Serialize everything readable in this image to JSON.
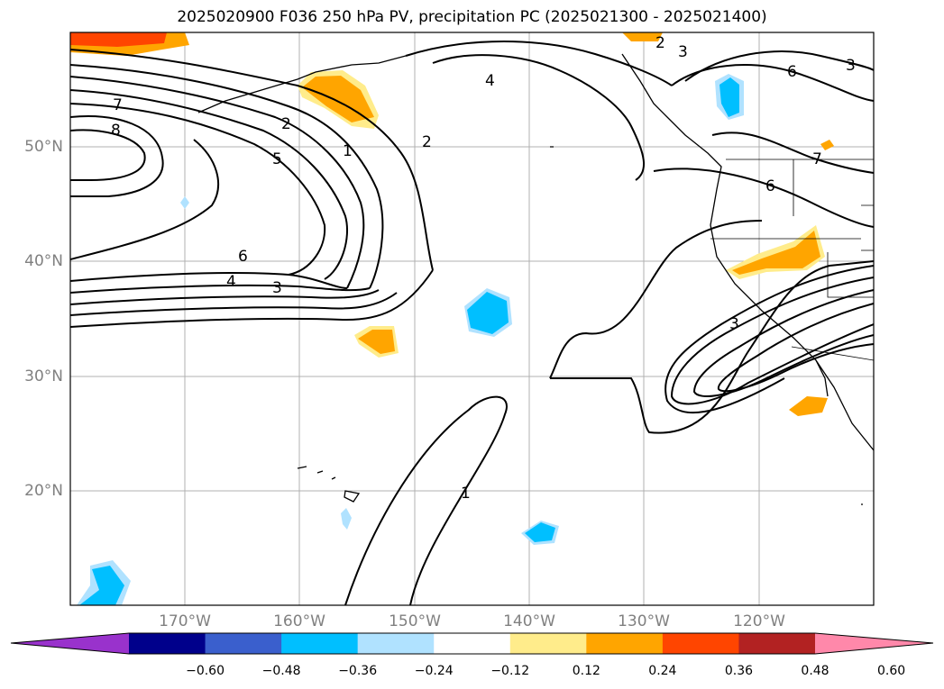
{
  "title": "2025020900 F036 250 hPa PV, precipitation PC (2025021300 - 2025021400)",
  "map": {
    "lon_range": [
      -180,
      -110
    ],
    "lat_range": [
      10,
      60
    ],
    "lat_labels": [
      "50°N",
      "40°N",
      "30°N",
      "20°N"
    ],
    "lon_labels": [
      "170°W",
      "160°W",
      "150°W",
      "140°W",
      "130°W",
      "120°W"
    ],
    "grid": true
  },
  "pv_contour_labels": [
    "2",
    "3",
    "4",
    "7",
    "8",
    "2",
    "5",
    "1",
    "2",
    "6",
    "4",
    "3",
    "1",
    "3",
    "6",
    "7",
    "6",
    "3"
  ],
  "colorbar": {
    "colors": [
      "#9932cc",
      "#00008b",
      "#3a5fcd",
      "#00bfff",
      "#b0e2ff",
      "#ffffff",
      "#ffec8b",
      "#ffa500",
      "#ff4500",
      "#b22222",
      "#ff88aa"
    ],
    "ticks": [
      "−0.60",
      "−0.48",
      "−0.36",
      "−0.24",
      "−0.12",
      "0.12",
      "0.24",
      "0.36",
      "0.48",
      "0.60"
    ]
  }
}
